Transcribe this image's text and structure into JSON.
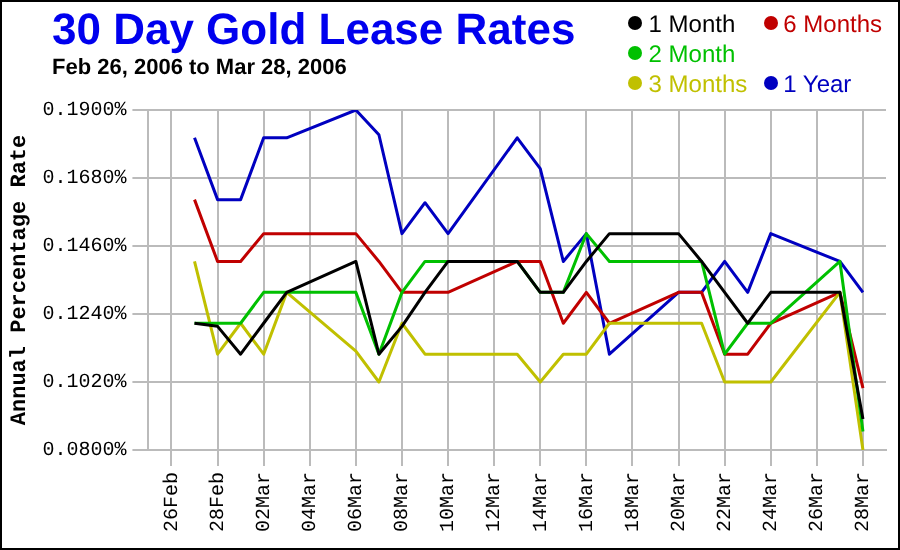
{
  "chart_data": {
    "type": "line",
    "title": "30 Day Gold Lease Rates",
    "subtitle": "Feb 26, 2006 to Mar 28, 2006",
    "ylabel": "Annual Percentage Rate",
    "x": [
      "2006-02-27",
      "2006-02-28",
      "2006-03-01",
      "2006-03-02",
      "2006-03-03",
      "2006-03-06",
      "2006-03-07",
      "2006-03-08",
      "2006-03-09",
      "2006-03-10",
      "2006-03-13",
      "2006-03-14",
      "2006-03-15",
      "2006-03-16",
      "2006-03-17",
      "2006-03-20",
      "2006-03-21",
      "2006-03-22",
      "2006-03-23",
      "2006-03-24",
      "2006-03-27",
      "2006-03-28"
    ],
    "series": [
      {
        "name": "1 Month",
        "color": "#000000",
        "values": [
          0.121,
          0.12,
          0.111,
          0.121,
          0.131,
          0.141,
          0.111,
          0.12,
          0.131,
          0.141,
          0.141,
          0.131,
          0.131,
          0.141,
          0.15,
          0.15,
          0.141,
          0.131,
          0.121,
          0.131,
          0.131,
          0.09
        ]
      },
      {
        "name": "2 Month",
        "color": "#00c000",
        "values": [
          0.121,
          0.121,
          0.121,
          0.131,
          0.131,
          0.131,
          0.111,
          0.131,
          0.141,
          0.141,
          0.141,
          0.131,
          0.131,
          0.15,
          0.141,
          0.141,
          0.141,
          0.111,
          0.121,
          0.121,
          0.141,
          0.086
        ]
      },
      {
        "name": "3 Months",
        "color": "#c0c000",
        "values": [
          0.141,
          0.111,
          0.121,
          0.111,
          0.131,
          0.112,
          0.102,
          0.121,
          0.111,
          0.111,
          0.111,
          0.102,
          0.111,
          0.111,
          0.121,
          0.121,
          0.121,
          0.102,
          0.102,
          0.102,
          0.131,
          0.08
        ]
      },
      {
        "name": "6 Months",
        "color": "#c00000",
        "values": [
          0.161,
          0.141,
          0.141,
          0.15,
          0.15,
          0.15,
          0.141,
          0.131,
          0.131,
          0.131,
          0.141,
          0.141,
          0.121,
          0.131,
          0.121,
          0.131,
          0.131,
          0.111,
          0.111,
          0.121,
          0.131,
          0.1
        ]
      },
      {
        "name": "1 Year",
        "color": "#0000c0",
        "values": [
          0.181,
          0.161,
          0.161,
          0.181,
          0.181,
          0.19,
          0.182,
          0.15,
          0.16,
          0.15,
          0.181,
          0.171,
          0.141,
          0.15,
          0.111,
          0.131,
          0.131,
          0.141,
          0.131,
          0.15,
          0.141,
          0.131
        ]
      }
    ],
    "xlim": [
      "2006-02-25",
      "2006-03-29"
    ],
    "xticks": [
      {
        "value": "2006-02-26",
        "label": "26Feb"
      },
      {
        "value": "2006-02-28",
        "label": "28Feb"
      },
      {
        "value": "2006-03-02",
        "label": "02Mar"
      },
      {
        "value": "2006-03-04",
        "label": "04Mar"
      },
      {
        "value": "2006-03-06",
        "label": "06Mar"
      },
      {
        "value": "2006-03-08",
        "label": "08Mar"
      },
      {
        "value": "2006-03-10",
        "label": "10Mar"
      },
      {
        "value": "2006-03-12",
        "label": "12Mar"
      },
      {
        "value": "2006-03-14",
        "label": "14Mar"
      },
      {
        "value": "2006-03-16",
        "label": "16Mar"
      },
      {
        "value": "2006-03-18",
        "label": "18Mar"
      },
      {
        "value": "2006-03-20",
        "label": "20Mar"
      },
      {
        "value": "2006-03-22",
        "label": "22Mar"
      },
      {
        "value": "2006-03-24",
        "label": "24Mar"
      },
      {
        "value": "2006-03-26",
        "label": "26Mar"
      },
      {
        "value": "2006-03-28",
        "label": "28Mar"
      }
    ],
    "ylim": [
      0.08,
      0.19
    ],
    "yticks": [
      {
        "value": 0.08,
        "label": "0.0800%"
      },
      {
        "value": 0.102,
        "label": "0.1020%"
      },
      {
        "value": 0.124,
        "label": "0.1240%"
      },
      {
        "value": 0.146,
        "label": "0.1460%"
      },
      {
        "value": 0.168,
        "label": "0.1680%"
      },
      {
        "value": 0.19,
        "label": "0.1900%"
      }
    ],
    "grid": true,
    "legend": "top right",
    "marker": "none",
    "line_style": "solid"
  }
}
